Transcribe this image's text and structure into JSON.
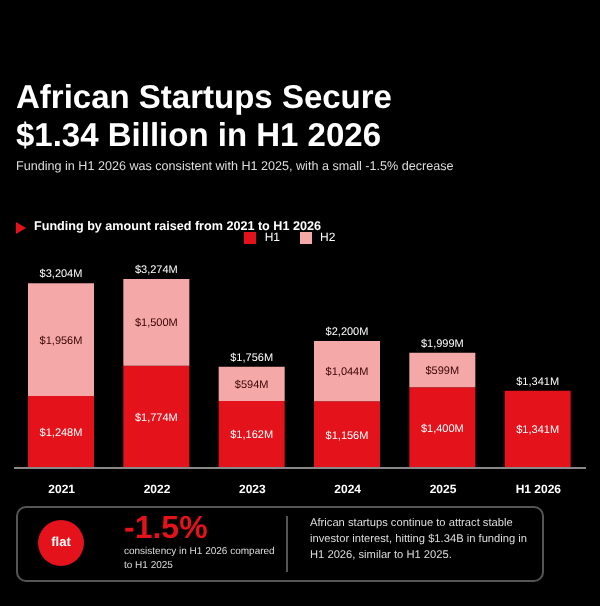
{
  "chart_data": {
    "type": "bar",
    "title": "African Startups Secure $1.34 Billion in H1 2026",
    "subtitle": "Funding in H1 2026 was consistent with H1 2025, with a small -1.5% decrease",
    "categories": [
      "2021",
      "2022",
      "2023",
      "2024",
      "2025",
      "H1 2026"
    ],
    "series": [
      {
        "name": "H1",
        "color": "#e3121b",
        "values": [
          1248,
          1774,
          1162,
          1156,
          1400,
          1341
        ],
        "value_labels": [
          "$1,248M",
          "$1,774M",
          "$1,162M",
          "$1,156M",
          "$1,400M",
          "$1,341M"
        ]
      },
      {
        "name": "H2",
        "color": "#f4a9a8",
        "values": [
          1956,
          1500,
          594,
          1044,
          599,
          null
        ],
        "value_labels": [
          "$1,956M",
          "$1,500M",
          "$594M",
          "$1,044M",
          "$599M",
          null
        ]
      }
    ],
    "stacked": true,
    "totals": [
      "$3,204M",
      "$3,274M",
      "$1,756M",
      "$2,200M",
      "$1,999M",
      "$1,341M"
    ],
    "legend": "top",
    "grid": false,
    "annotations": [
      "Funding by amount raised from 2021 to H1 2026",
      "flat",
      "-1.5%",
      "consistency in H1 2026 compared to H1 2025",
      "African startups continue to attract stable investor interest, hitting $1.34B in funding in H1 2026, similar to H1 2025."
    ]
  }
}
